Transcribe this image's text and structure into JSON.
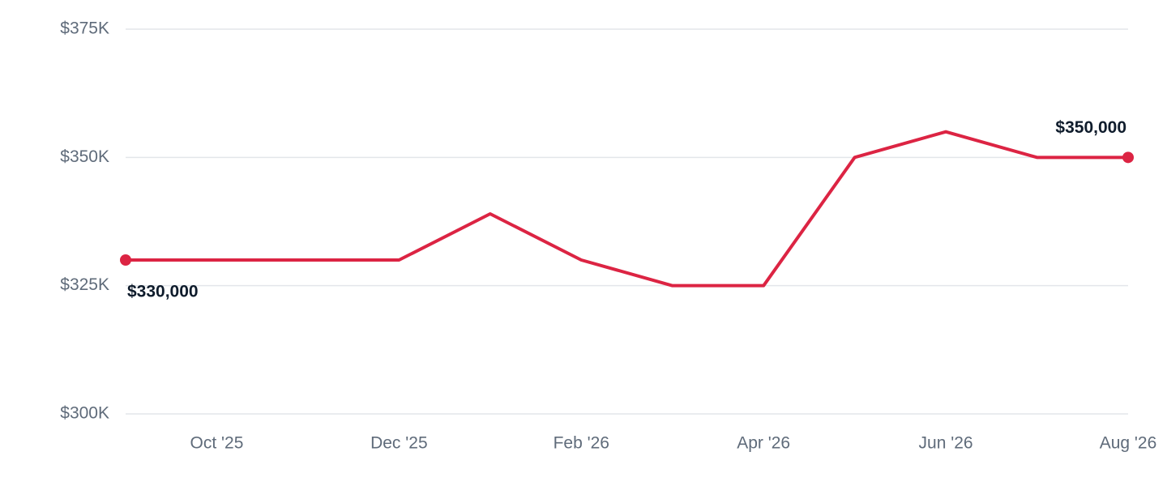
{
  "chart_data": {
    "type": "line",
    "categories": [
      null,
      "Oct '25",
      null,
      "Dec '25",
      null,
      "Feb '26",
      null,
      "Apr '26",
      null,
      "Jun '26",
      null,
      "Aug '26"
    ],
    "series": [
      {
        "color": "#dc2443",
        "values": [
          330000,
          330000,
          330000,
          330000,
          339000,
          330000,
          325000,
          325000,
          350000,
          355000,
          350000,
          350000
        ],
        "value_labels": [
          "$330,000",
          null,
          null,
          null,
          null,
          null,
          null,
          null,
          null,
          null,
          null,
          "$350,000"
        ]
      }
    ],
    "ylim": [
      300000,
      375000
    ],
    "yticks": [
      {
        "value": 300000,
        "label": "$300K"
      },
      {
        "value": 325000,
        "label": "$325K"
      },
      {
        "value": 350000,
        "label": "$350K"
      },
      {
        "value": 375000,
        "label": "$375K"
      }
    ],
    "grid": true
  }
}
